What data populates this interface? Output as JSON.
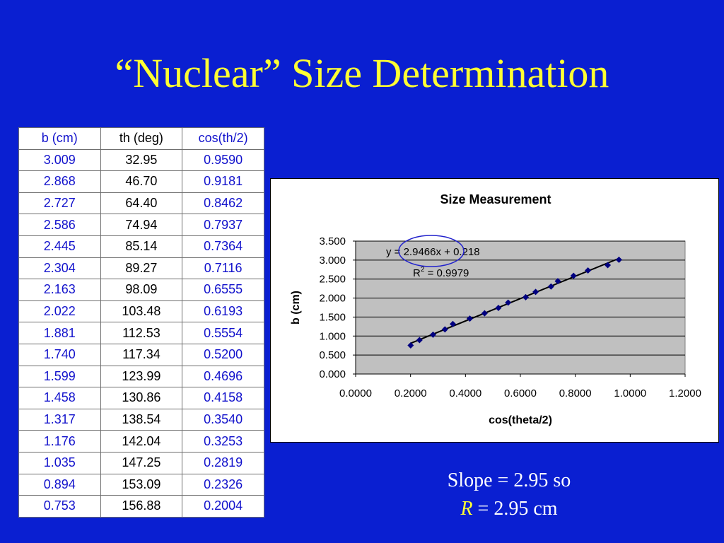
{
  "title": "“Nuclear” Size Determination",
  "table": {
    "headers": [
      "b (cm)",
      "th (deg)",
      "cos(th/2)"
    ],
    "rows": [
      [
        "3.009",
        "32.95",
        "0.9590"
      ],
      [
        "2.868",
        "46.70",
        "0.9181"
      ],
      [
        "2.727",
        "64.40",
        "0.8462"
      ],
      [
        "2.586",
        "74.94",
        "0.7937"
      ],
      [
        "2.445",
        "85.14",
        "0.7364"
      ],
      [
        "2.304",
        "89.27",
        "0.7116"
      ],
      [
        "2.163",
        "98.09",
        "0.6555"
      ],
      [
        "2.022",
        "103.48",
        "0.6193"
      ],
      [
        "1.881",
        "112.53",
        "0.5554"
      ],
      [
        "1.740",
        "117.34",
        "0.5200"
      ],
      [
        "1.599",
        "123.99",
        "0.4696"
      ],
      [
        "1.458",
        "130.86",
        "0.4158"
      ],
      [
        "1.317",
        "138.54",
        "0.3540"
      ],
      [
        "1.176",
        "142.04",
        "0.3253"
      ],
      [
        "1.035",
        "147.25",
        "0.2819"
      ],
      [
        "0.894",
        "153.09",
        "0.2326"
      ],
      [
        "0.753",
        "156.88",
        "0.2004"
      ]
    ]
  },
  "chart_data": {
    "type": "scatter",
    "title": "Size Measurement",
    "xlabel": "cos(theta/2)",
    "ylabel": "b (cm)",
    "xlim": [
      0,
      1.2
    ],
    "ylim": [
      0,
      3.5
    ],
    "x_ticks": [
      "0.0000",
      "0.2000",
      "0.4000",
      "0.6000",
      "0.8000",
      "1.0000",
      "1.2000"
    ],
    "y_ticks": [
      "0.000",
      "0.500",
      "1.000",
      "1.500",
      "2.000",
      "2.500",
      "3.000",
      "3.500"
    ],
    "grid": true,
    "x": [
      0.959,
      0.9181,
      0.8462,
      0.7937,
      0.7364,
      0.7116,
      0.6555,
      0.6193,
      0.5554,
      0.52,
      0.4696,
      0.4158,
      0.354,
      0.3253,
      0.2819,
      0.2326,
      0.2004
    ],
    "y": [
      3.009,
      2.868,
      2.727,
      2.586,
      2.445,
      2.304,
      2.163,
      2.022,
      1.881,
      1.74,
      1.599,
      1.458,
      1.317,
      1.176,
      1.035,
      0.894,
      0.753
    ],
    "trendline": {
      "slope": 2.9466,
      "intercept": 0.218
    },
    "annotations": {
      "equation": "y = 2.9466x + 0.218",
      "r_squared_prefix": "R",
      "r_squared_sup": "2",
      "r_squared_rest": " = 0.9979"
    },
    "colors": {
      "plot_bg": "#c0c0c0",
      "marker": "#000080",
      "trendline": "#000000",
      "circle": "#2222cc"
    }
  },
  "conclusion": {
    "line1": "Slope = 2.95 so",
    "r_symbol": "R",
    "line2_rest": " = 2.95 cm"
  }
}
